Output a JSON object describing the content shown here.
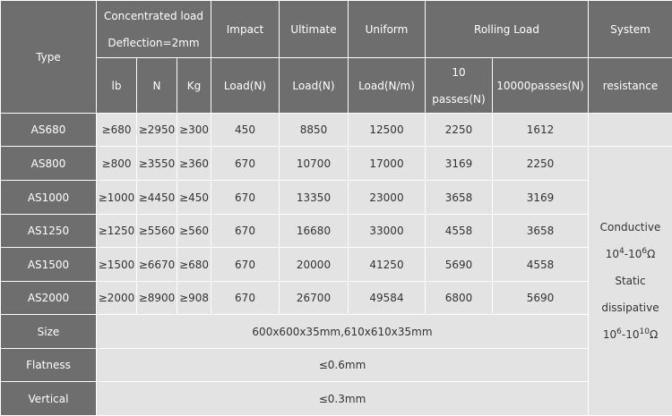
{
  "table": {
    "header": {
      "type": "Type",
      "concentrated_load": "Concentrated load",
      "deflection": "Deflection=2mm",
      "impact": "Impact",
      "ultimate": "Ultimate",
      "uniform": "Uniform",
      "rolling_load": "Rolling Load",
      "system": "System",
      "lb": "lb",
      "n": "N",
      "kg": "Kg",
      "impact_unit": "Load(N)",
      "ultimate_unit": "Load(N)",
      "uniform_unit": "Load(N/m)",
      "passes_10": [
        "10",
        "passes(N)"
      ],
      "passes_10000": "10000passes(N)",
      "resistance": "resistance"
    },
    "rows": [
      [
        "AS680",
        "≥680",
        "≥2950",
        "≥300",
        "450",
        "8850",
        "12500",
        "2250",
        "1612"
      ],
      [
        "AS800",
        "≥800",
        "≥3550",
        "≥360",
        "670",
        "10700",
        "17000",
        "3169",
        "2250"
      ],
      [
        "AS1000",
        "≥1000",
        "≥4450",
        "≥450",
        "670",
        "13350",
        "23000",
        "3658",
        "3169"
      ],
      [
        "AS1250",
        "≥1250",
        "≥5560",
        "≥560",
        "670",
        "16680",
        "33000",
        "4558",
        "3658"
      ],
      [
        "AS1500",
        "≥1500",
        "≥6670",
        "≥680",
        "670",
        "20000",
        "41250",
        "5690",
        "4558"
      ],
      [
        "AS2000",
        "≥2000",
        "≥8900",
        "≥908",
        "670",
        "26700",
        "49584",
        "6800",
        "5690"
      ]
    ],
    "spec_rows": [
      [
        "Size",
        "600x600x35mm,610x610x35mm"
      ],
      [
        "Flatness",
        "≤0.6mm"
      ],
      [
        "Vertical",
        "≤0.3mm"
      ]
    ],
    "system_resistance": {
      "conductive": "Conductive",
      "conductive_range": [
        "10",
        "4",
        "-10",
        "6",
        "Ω"
      ],
      "static": "Static",
      "dissipative": "dissipative",
      "static_range": [
        "10",
        "6",
        "-10",
        "10",
        "Ω"
      ]
    }
  }
}
